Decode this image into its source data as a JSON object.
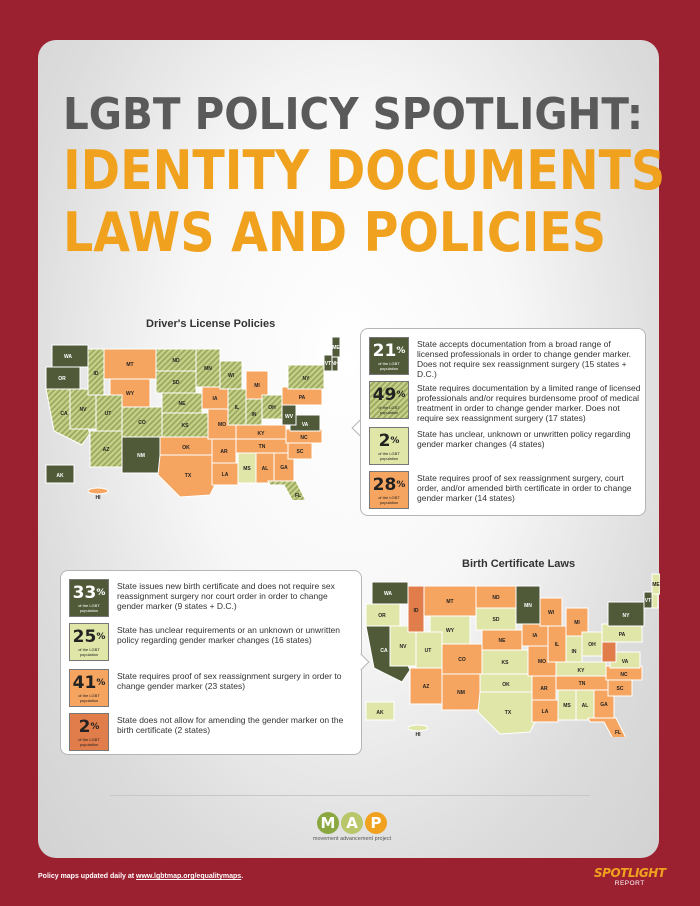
{
  "header": {
    "line1": "LGBT POLICY SPOTLIGHT:",
    "line2": "IDENTITY DOCUMENTS",
    "line3": "LAWS AND POLICIES"
  },
  "drivers_license": {
    "title": "Driver's License Policies",
    "legend": [
      {
        "pct": "21",
        "sub": "of the LGBT population",
        "text": "State accepts documentation from a broad range of licensed professionals in order to change gender marker. Does not require sex reassignment surgery (15 states + D.C.)"
      },
      {
        "pct": "49",
        "sub": "of the LGBT population",
        "text": "State requires documentation by a limited range of licensed professionals and/or requires burdensome proof of medical treatment in order to change gender marker. Does not require sex reassignment surgery (17 states)"
      },
      {
        "pct": "2",
        "sub": "of the LGBT population",
        "text": "State has unclear, unknown or unwritten policy regarding gender marker changes (4 states)"
      },
      {
        "pct": "28",
        "sub": "of the LGBT population",
        "text": "State requires proof of sex reassignment surgery, court order, and/or amended birth certificate in order to change gender marker (14 states)"
      }
    ]
  },
  "birth_certificate": {
    "title": "Birth Certificate Laws",
    "legend": [
      {
        "pct": "33",
        "sub": "of the LGBT population",
        "text": "State issues new birth certificate and does not require sex reassignment surgery nor court order in order to change gender marker (9 states + D.C.)"
      },
      {
        "pct": "25",
        "sub": "of the LGBT population",
        "text": "State has unclear requirements or an unknown or unwritten policy regarding gender marker changes (16 states)"
      },
      {
        "pct": "41",
        "sub": "of the LGBT population",
        "text": "State requires proof of sex reassignment surgery in order to change gender marker (23 states)"
      },
      {
        "pct": "2",
        "sub": "of the LGBT population",
        "text": "State does not allow for amending the gender marker on the birth certificate (2 states)"
      }
    ]
  },
  "map_labels": {
    "dl": [
      "WA",
      "OR",
      "CA",
      "NV",
      "ID",
      "MT",
      "WY",
      "UT",
      "AZ",
      "CO",
      "NM",
      "ND",
      "SD",
      "NE",
      "KS",
      "OK",
      "TX",
      "MN",
      "IA",
      "MO",
      "AR",
      "LA",
      "WI",
      "IL",
      "MI",
      "IN",
      "OH",
      "KY",
      "TN",
      "MS",
      "AL",
      "GA",
      "FL",
      "SC",
      "NC",
      "VA",
      "WV",
      "PA",
      "NY",
      "VT",
      "NH",
      "ME",
      "AK",
      "HI"
    ],
    "bc": [
      "WA",
      "OR",
      "CA",
      "NV",
      "ID",
      "MT",
      "WY",
      "UT",
      "AZ",
      "CO",
      "NM",
      "ND",
      "SD",
      "NE",
      "KS",
      "OK",
      "TX",
      "MN",
      "IA",
      "MO",
      "AR",
      "LA",
      "WI",
      "IL",
      "MI",
      "IN",
      "OH",
      "KY",
      "TN",
      "MS",
      "AL",
      "GA",
      "FL",
      "SC",
      "NC",
      "VA",
      "PA",
      "NY",
      "VT",
      "ME",
      "AK",
      "HI"
    ]
  },
  "logo": {
    "letters": [
      "M",
      "A",
      "P"
    ],
    "tagline": "movement advancement project"
  },
  "footer": {
    "note_prefix": "Policy maps updated daily at ",
    "note_link": "www.lgbtmap.org/equalitymaps",
    "note_suffix": ".",
    "brand_top": "SPOTLIGHT",
    "brand_bottom": "REPORT"
  },
  "colors": {
    "background": "#9b2131",
    "accent_orange": "#f0a21f",
    "dark_green": "#505a38",
    "light_green": "#dfe6a8",
    "orange": "#f6a561"
  }
}
